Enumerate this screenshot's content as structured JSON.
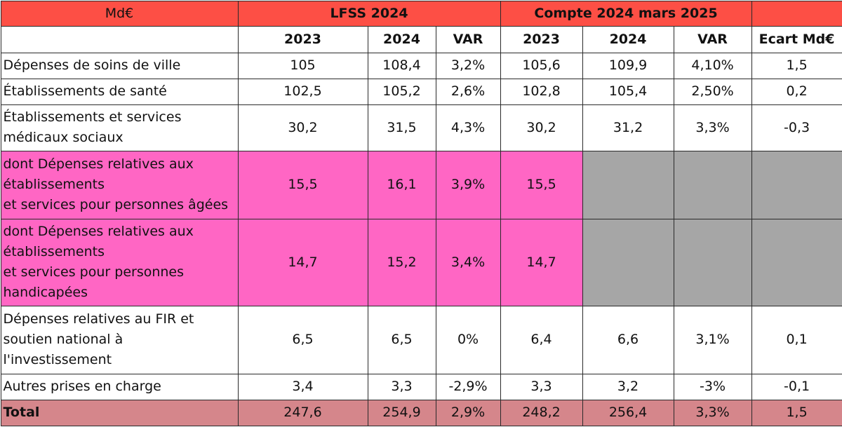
{
  "header": {
    "unit": "Md€",
    "group_lfss": "LFSS 2024",
    "group_compte": "Compte 2024 mars 2025",
    "group_blank": ""
  },
  "columns": {
    "label": "",
    "lfss_2023": "2023",
    "lfss_2024": "2024",
    "lfss_var": "VAR",
    "compte_2023": "2023",
    "compte_2024": "2024",
    "compte_var": "VAR",
    "ecart": "Ecart Md€"
  },
  "rows": [
    {
      "label": "Dépenses de soins de ville",
      "lfss_2023": "105",
      "lfss_2024": "108,4",
      "lfss_var": "3,2%",
      "compte_2023": "105,6",
      "compte_2024": "109,9",
      "compte_var": "4,10%",
      "ecart": "1,5"
    },
    {
      "label": "Établissements de santé",
      "lfss_2023": "102,5",
      "lfss_2024": "105,2",
      "lfss_var": "2,6%",
      "compte_2023": "102,8",
      "compte_2024": "105,4",
      "compte_var": "2,50%",
      "ecart": "0,2"
    },
    {
      "label": "Établissements et services\nmédicaux sociaux",
      "lfss_2023": "30,2",
      "lfss_2024": "31,5",
      "lfss_var": "4,3%",
      "compte_2023": "30,2",
      "compte_2024": "31,2",
      "compte_var": "3,3%",
      "ecart": "-0,3"
    },
    {
      "label": "dont Dépenses relatives aux\nétablissements\n et services pour personnes âgées",
      "lfss_2023": "15,5",
      "lfss_2024": "16,1",
      "lfss_var": "3,9%",
      "compte_2023": "15,5",
      "compte_2024": "",
      "compte_var": "",
      "ecart": ""
    },
    {
      "label": "dont Dépenses relatives aux\nétablissements\net services pour personnes\nhandicapées",
      "lfss_2023": "14,7",
      "lfss_2024": "15,2",
      "lfss_var": "3,4%",
      "compte_2023": "14,7",
      "compte_2024": "",
      "compte_var": "",
      "ecart": ""
    },
    {
      "label": "Dépenses relatives au FIR et\nsoutien national à\nl'investissement",
      "lfss_2023": "6,5",
      "lfss_2024": "6,5",
      "lfss_var": "0%",
      "compte_2023": "6,4",
      "compte_2024": "6,6",
      "compte_var": "3,1%",
      "ecart": "0,1"
    },
    {
      "label": "Autres prises en charge",
      "lfss_2023": "3,4",
      "lfss_2024": "3,3",
      "lfss_var": "-2,9%",
      "compte_2023": "3,3",
      "compte_2024": "3,2",
      "compte_var": "-3%",
      "ecart": "-0,1"
    }
  ],
  "total": {
    "label": "Total",
    "lfss_2023": "247,6",
    "lfss_2024": "254,9",
    "lfss_var": "2,9%",
    "compte_2023": "248,2",
    "compte_2024": "256,4",
    "compte_var": "3,3%",
    "ecart": "1,5"
  },
  "colors": {
    "header_red": "#fd4f45",
    "highlight_pink": "#ff66c4",
    "empty_gray": "#a6a6a6",
    "total_rose": "#d5868b"
  }
}
